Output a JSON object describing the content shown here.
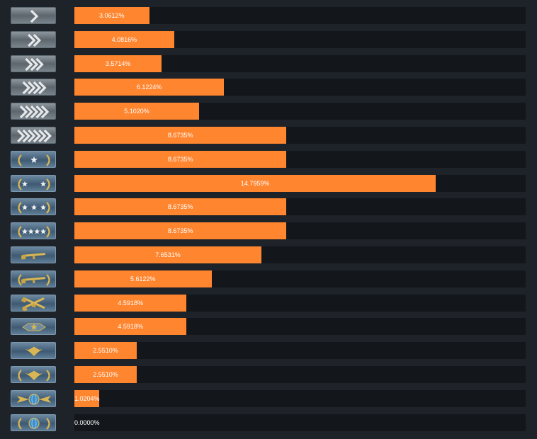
{
  "chart_data": {
    "type": "bar",
    "orientation": "horizontal",
    "xlim": [
      0,
      18.47
    ],
    "categories": [
      "chevron-1-icon",
      "chevron-2-icon",
      "chevron-3-icon",
      "chevron-4-icon",
      "chevron-5-icon",
      "chevron-6-icon",
      "star-1-icon",
      "star-2-icon",
      "star-3-icon",
      "star-4-icon",
      "rifle-icon",
      "rifle-wreath-icon",
      "crossed-rifles-icon",
      "star-emblem-icon",
      "eagle-icon",
      "eagle-wreath-icon",
      "winged-globe-icon",
      "globe-wreath-icon"
    ],
    "values": [
      3.0612,
      4.0816,
      3.5714,
      6.1224,
      5.102,
      8.6735,
      8.6735,
      14.7959,
      8.6735,
      8.6735,
      7.6531,
      5.6122,
      4.5918,
      4.5918,
      2.551,
      2.551,
      1.0204,
      0.0
    ],
    "value_labels": [
      "3.0612%",
      "4.0816%",
      "3.5714%",
      "6.1224%",
      "5.1020%",
      "8.6735%",
      "8.6735%",
      "14.7959%",
      "8.6735%",
      "8.6735%",
      "7.6531%",
      "5.6122%",
      "4.5918%",
      "4.5918%",
      "2.5510%",
      "2.5510%",
      "1.0204%",
      "0.0000%"
    ],
    "colors": {
      "bar": "#ff852f",
      "track": "#13171b",
      "background": "#1d2329",
      "label": "#ffffff"
    }
  }
}
